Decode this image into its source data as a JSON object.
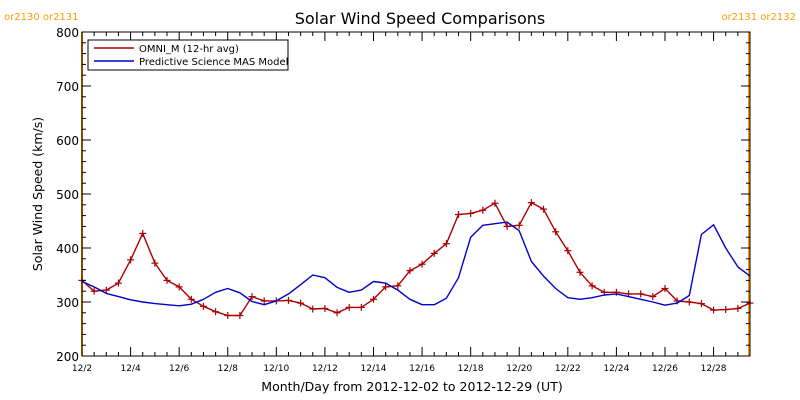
{
  "chart_data": {
    "type": "line",
    "title": "Solar Wind Speed Comparisons",
    "xlabel": "Month/Day from 2012-12-02 to 2012-12-29 (UT)",
    "ylabel": "Solar Wind Speed (km/s)",
    "xlim": [
      "2012-12-02",
      "2012-12-29T12:00"
    ],
    "ylim": [
      200,
      800
    ],
    "x_ticks": [
      "12/2",
      "12/4",
      "12/6",
      "12/8",
      "12/10",
      "12/12",
      "12/14",
      "12/16",
      "12/18",
      "12/20",
      "12/22",
      "12/24",
      "12/26",
      "12/28"
    ],
    "y_ticks": [
      200,
      300,
      400,
      500,
      600,
      700,
      800
    ],
    "legend_position": "top-left",
    "grid": false,
    "rotation_markers": [
      {
        "date": "2012-12-02",
        "label": "or2130 or2131",
        "color": "#ff9900"
      },
      {
        "date": "2012-12-29T11:00",
        "label": "or2131 or2132",
        "color": "#ff9900"
      }
    ],
    "series": [
      {
        "name": "OMNI_M (12-hr avg)",
        "color": "#aa0000",
        "marker": "+",
        "points": [
          [
            "2012-12-02T00:00",
            340
          ],
          [
            "2012-12-02T12:00",
            320
          ],
          [
            "2012-12-03T00:00",
            322
          ],
          [
            "2012-12-03T12:00",
            335
          ],
          [
            "2012-12-04T00:00",
            378
          ],
          [
            "2012-12-04T12:00",
            427
          ],
          [
            "2012-12-05T00:00",
            372
          ],
          [
            "2012-12-05T12:00",
            340
          ],
          [
            "2012-12-06T00:00",
            328
          ],
          [
            "2012-12-06T12:00",
            305
          ],
          [
            "2012-12-07T00:00",
            292
          ],
          [
            "2012-12-07T12:00",
            282
          ],
          [
            "2012-12-08T00:00",
            275
          ],
          [
            "2012-12-08T12:00",
            275
          ],
          [
            "2012-12-09T00:00",
            310
          ],
          [
            "2012-12-09T12:00",
            302
          ],
          [
            "2012-12-10T00:00",
            302
          ],
          [
            "2012-12-10T12:00",
            303
          ],
          [
            "2012-12-11T00:00",
            298
          ],
          [
            "2012-12-11T12:00",
            287
          ],
          [
            "2012-12-12T00:00",
            288
          ],
          [
            "2012-12-12T12:00",
            280
          ],
          [
            "2012-12-13T00:00",
            290
          ],
          [
            "2012-12-13T12:00",
            290
          ],
          [
            "2012-12-14T00:00",
            305
          ],
          [
            "2012-12-14T12:00",
            328
          ],
          [
            "2012-12-15T00:00",
            330
          ],
          [
            "2012-12-15T12:00",
            358
          ],
          [
            "2012-12-16T00:00",
            370
          ],
          [
            "2012-12-16T12:00",
            390
          ],
          [
            "2012-12-17T00:00",
            408
          ],
          [
            "2012-12-17T12:00",
            462
          ],
          [
            "2012-12-18T00:00",
            464
          ],
          [
            "2012-12-18T12:00",
            470
          ],
          [
            "2012-12-19T00:00",
            483
          ],
          [
            "2012-12-19T12:00",
            440
          ],
          [
            "2012-12-20T00:00",
            442
          ],
          [
            "2012-12-20T12:00",
            484
          ],
          [
            "2012-12-21T00:00",
            472
          ],
          [
            "2012-12-21T12:00",
            430
          ],
          [
            "2012-12-22T00:00",
            395
          ],
          [
            "2012-12-22T12:00",
            355
          ],
          [
            "2012-12-23T00:00",
            330
          ],
          [
            "2012-12-23T12:00",
            318
          ],
          [
            "2012-12-24T00:00",
            318
          ],
          [
            "2012-12-24T12:00",
            315
          ],
          [
            "2012-12-25T00:00",
            315
          ],
          [
            "2012-12-25T12:00",
            310
          ],
          [
            "2012-12-26T00:00",
            325
          ],
          [
            "2012-12-26T12:00",
            302
          ],
          [
            "2012-12-27T00:00",
            300
          ],
          [
            "2012-12-27T12:00",
            297
          ],
          [
            "2012-12-28T00:00",
            285
          ],
          [
            "2012-12-28T12:00",
            286
          ],
          [
            "2012-12-29T00:00",
            288
          ],
          [
            "2012-12-29T12:00",
            298
          ]
        ]
      },
      {
        "name": "Predictive Science MAS Model",
        "color": "#0000cc",
        "marker": "",
        "points": [
          [
            "2012-12-02T00:00",
            338
          ],
          [
            "2012-12-02T12:00",
            328
          ],
          [
            "2012-12-03T00:00",
            316
          ],
          [
            "2012-12-03T12:00",
            310
          ],
          [
            "2012-12-04T00:00",
            304
          ],
          [
            "2012-12-04T12:00",
            300
          ],
          [
            "2012-12-05T00:00",
            297
          ],
          [
            "2012-12-05T12:00",
            295
          ],
          [
            "2012-12-06T00:00",
            293
          ],
          [
            "2012-12-06T12:00",
            296
          ],
          [
            "2012-12-07T00:00",
            305
          ],
          [
            "2012-12-07T12:00",
            318
          ],
          [
            "2012-12-08T00:00",
            325
          ],
          [
            "2012-12-08T12:00",
            317
          ],
          [
            "2012-12-09T00:00",
            301
          ],
          [
            "2012-12-09T12:00",
            295
          ],
          [
            "2012-12-10T00:00",
            302
          ],
          [
            "2012-12-10T12:00",
            315
          ],
          [
            "2012-12-11T00:00",
            332
          ],
          [
            "2012-12-11T12:00",
            350
          ],
          [
            "2012-12-12T00:00",
            345
          ],
          [
            "2012-12-12T12:00",
            327
          ],
          [
            "2012-12-13T00:00",
            318
          ],
          [
            "2012-12-13T12:00",
            322
          ],
          [
            "2012-12-14T00:00",
            338
          ],
          [
            "2012-12-14T12:00",
            335
          ],
          [
            "2012-12-15T00:00",
            322
          ],
          [
            "2012-12-15T12:00",
            305
          ],
          [
            "2012-12-16T00:00",
            295
          ],
          [
            "2012-12-16T12:00",
            295
          ],
          [
            "2012-12-17T00:00",
            307
          ],
          [
            "2012-12-17T12:00",
            345
          ],
          [
            "2012-12-18T00:00",
            420
          ],
          [
            "2012-12-18T12:00",
            442
          ],
          [
            "2012-12-19T00:00",
            445
          ],
          [
            "2012-12-19T12:00",
            448
          ],
          [
            "2012-12-20T00:00",
            432
          ],
          [
            "2012-12-20T12:00",
            375
          ],
          [
            "2012-12-21T00:00",
            348
          ],
          [
            "2012-12-21T12:00",
            325
          ],
          [
            "2012-12-22T00:00",
            308
          ],
          [
            "2012-12-22T12:00",
            305
          ],
          [
            "2012-12-23T00:00",
            308
          ],
          [
            "2012-12-23T12:00",
            313
          ],
          [
            "2012-12-24T00:00",
            315
          ],
          [
            "2012-12-24T12:00",
            310
          ],
          [
            "2012-12-25T00:00",
            305
          ],
          [
            "2012-12-25T12:00",
            300
          ],
          [
            "2012-12-26T00:00",
            294
          ],
          [
            "2012-12-26T12:00",
            298
          ],
          [
            "2012-12-27T00:00",
            312
          ],
          [
            "2012-12-27T12:00",
            425
          ],
          [
            "2012-12-28T00:00",
            443
          ],
          [
            "2012-12-28T12:00",
            400
          ],
          [
            "2012-12-29T00:00",
            365
          ],
          [
            "2012-12-29T12:00",
            348
          ]
        ]
      }
    ]
  }
}
